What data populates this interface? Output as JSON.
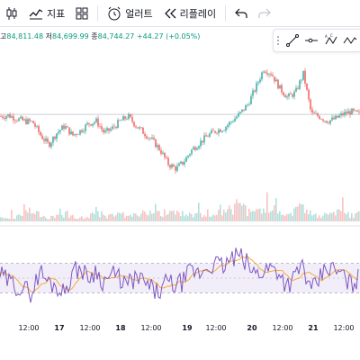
{
  "toolbar": {
    "indicators_label": "지표",
    "alert_label": "얼러트",
    "replay_label": "리플레이"
  },
  "legend": {
    "high_prefix": "고",
    "high": "84,811.48",
    "low_prefix": "저",
    "low": "84,699.99",
    "close_prefix": "종",
    "close": "84,744.27",
    "change": "+44.27 (+0.05%)"
  },
  "colors": {
    "up": "#26a69a",
    "down": "#ef5350",
    "rsi_line": "#7e57c2",
    "rsi_ma": "#f5a623",
    "rsi_band": "#7e57c2",
    "legend_value": "#089981"
  },
  "icons": [
    "candles-icon",
    "indicators-icon",
    "layouts-icon",
    "alert-clock-icon",
    "replay-icon",
    "undo-icon",
    "redo-icon",
    "trendline-icon",
    "horizontal-ray-icon",
    "abcd-pattern-icon",
    "zigzag-icon"
  ],
  "chart_data": {
    "type": "candlestick",
    "price_path": [
      84700,
      84720,
      84650,
      84600,
      84580,
      84300,
      84100,
      84350,
      84500,
      84300,
      84400,
      84550,
      84600,
      84350,
      84450,
      84600,
      84700,
      84500,
      84350,
      84200,
      84000,
      83700,
      83600,
      83750,
      84000,
      84150,
      84300,
      84400,
      84450,
      84600,
      84750,
      84950,
      85300,
      85700,
      85600,
      85300,
      85100,
      85200,
      85600,
      84750,
      84700,
      84600,
      84650,
      84750,
      84800,
      84744
    ],
    "volume_path": [
      0.2,
      0.3,
      0.25,
      0.4,
      0.9,
      0.3,
      0.2,
      0.3,
      0.5,
      0.3,
      0.25,
      0.3,
      0.6,
      0.35,
      0.3,
      0.4,
      0.3,
      0.35,
      0.45,
      0.5,
      0.4,
      0.55,
      0.5,
      0.4,
      0.35,
      0.4,
      0.5,
      0.4,
      0.6,
      0.7,
      0.9,
      0.6,
      0.5,
      0.7,
      0.5,
      0.4,
      0.5,
      0.6,
      0.8,
      0.6,
      0.4,
      0.4,
      0.6,
      0.5,
      0.4,
      0.5
    ],
    "rsi": {
      "upper": 70,
      "lower": 30,
      "path": [
        55,
        45,
        40,
        35,
        30,
        60,
        45,
        40,
        30,
        55,
        65,
        50,
        60,
        45,
        55,
        50,
        40,
        50,
        45,
        35,
        30,
        45,
        40,
        45,
        60,
        55,
        65,
        70,
        65,
        75,
        80,
        70,
        55,
        60,
        65,
        60,
        40,
        50,
        70,
        30,
        45,
        65,
        60,
        55,
        40,
        50
      ]
    },
    "time_labels": [
      {
        "label": "12:00",
        "pos": 0.08,
        "bold": false
      },
      {
        "label": "17",
        "pos": 0.165,
        "bold": true
      },
      {
        "label": "12:00",
        "pos": 0.25,
        "bold": false
      },
      {
        "label": "18",
        "pos": 0.335,
        "bold": true
      },
      {
        "label": "12:00",
        "pos": 0.42,
        "bold": false
      },
      {
        "label": "19",
        "pos": 0.52,
        "bold": true
      },
      {
        "label": "12:00",
        "pos": 0.6,
        "bold": false
      },
      {
        "label": "20",
        "pos": 0.7,
        "bold": true
      },
      {
        "label": "12:00",
        "pos": 0.785,
        "bold": false
      },
      {
        "label": "21",
        "pos": 0.87,
        "bold": true
      },
      {
        "label": "12:00",
        "pos": 0.955,
        "bold": false
      }
    ]
  }
}
